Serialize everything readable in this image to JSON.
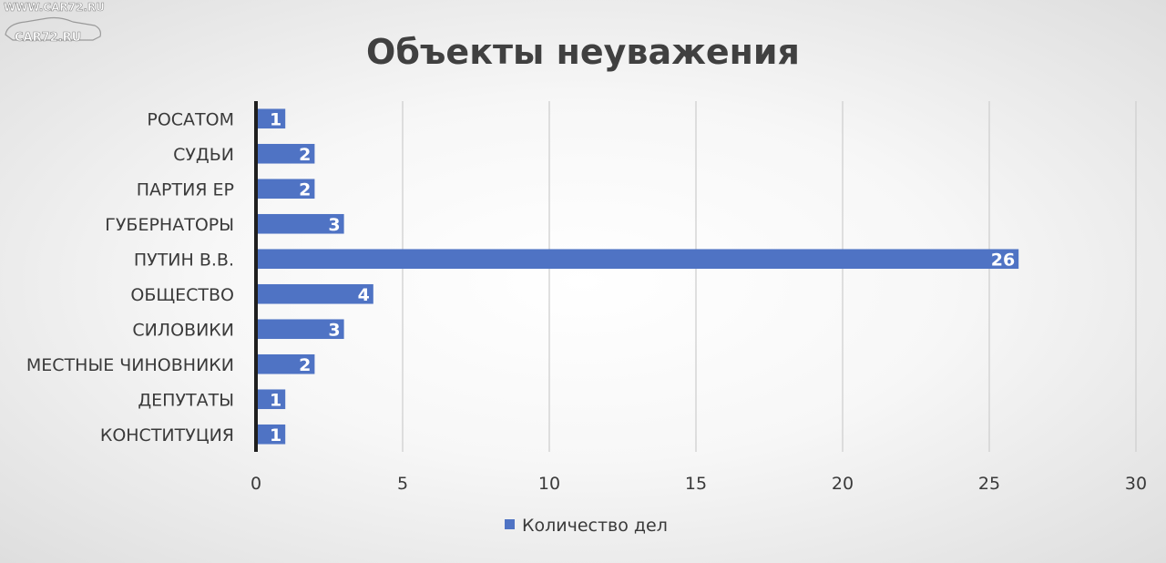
{
  "watermark": {
    "url_text": "WWW.CAR72.RU",
    "logo_text": "CAR72.RU"
  },
  "chart_data": {
    "type": "bar",
    "orientation": "horizontal",
    "title": "Объекты неуважения",
    "categories": [
      "РОСАТОМ",
      "СУДЬИ",
      "ПАРТИЯ ЕР",
      "ГУБЕРНАТОРЫ",
      "ПУТИН В.В.",
      "ОБЩЕСТВО",
      "СИЛОВИКИ",
      "МЕСТНЫЕ ЧИНОВНИКИ",
      "ДЕПУТАТЫ",
      "КОНСТИТУЦИЯ"
    ],
    "series": [
      {
        "name": "Количество дел",
        "values": [
          1,
          2,
          2,
          3,
          26,
          4,
          3,
          2,
          1,
          1
        ],
        "color": "#4f73c4"
      }
    ],
    "xlim": [
      0,
      30
    ],
    "xticks": [
      0,
      5,
      10,
      15,
      20,
      25,
      30
    ],
    "xlabel": "",
    "ylabel": "",
    "grid": "vertical",
    "legend": "bottom",
    "data_labels": true
  }
}
